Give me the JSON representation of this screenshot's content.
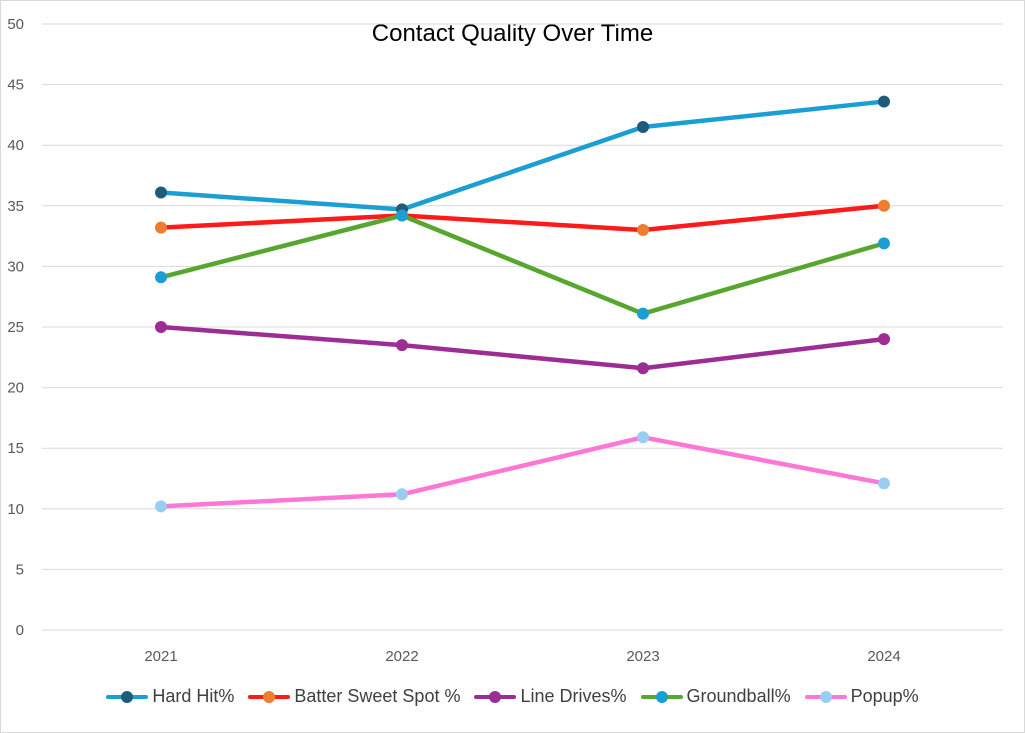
{
  "chart_data": {
    "type": "line",
    "title": "Contact Quality Over Time",
    "xlabel": "",
    "ylabel": "",
    "categories": [
      "2021",
      "2022",
      "2023",
      "2024"
    ],
    "ylim": [
      0,
      50
    ],
    "yticks": [
      "0",
      "5",
      "10",
      "15",
      "20",
      "25",
      "30",
      "35",
      "40",
      "45",
      "50"
    ],
    "grid": true,
    "legend_position": "bottom",
    "series": [
      {
        "name": "Hard Hit%",
        "values": [
          36.1,
          34.7,
          41.5,
          43.6
        ],
        "line_color": "#1b9ed4",
        "marker_color": "#1f5b7a"
      },
      {
        "name": "Batter Sweet Spot %",
        "values": [
          33.2,
          34.2,
          33.0,
          35.0
        ],
        "line_color": "#ff1a1a",
        "marker_color": "#ed7d31"
      },
      {
        "name": "Line Drives%",
        "values": [
          25.0,
          23.5,
          21.6,
          24.0
        ],
        "line_color": "#9b2d94",
        "marker_color": "#9b2d94"
      },
      {
        "name": "Groundball%",
        "values": [
          29.1,
          34.2,
          26.1,
          31.9
        ],
        "line_color": "#56a630",
        "marker_color": "#1b9ed4"
      },
      {
        "name": "Popup%",
        "values": [
          10.2,
          11.2,
          15.9,
          12.1
        ],
        "line_color": "#ff77d6",
        "marker_color": "#9bcdf2"
      }
    ]
  }
}
